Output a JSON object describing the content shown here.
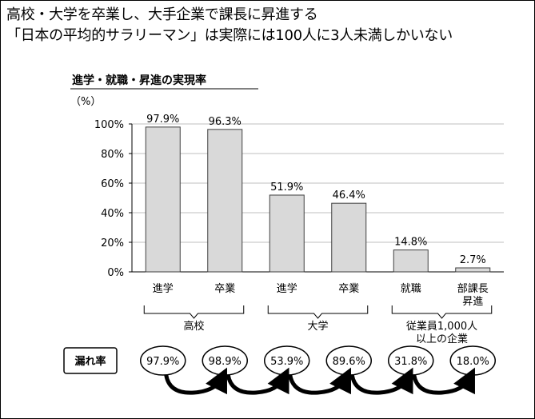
{
  "headline": {
    "line1": "高校・大学を卒業し、大手企業で課長に昇進する",
    "line2": "「日本の平均的サラリーマン」は実際には100人に3人未満しかいない"
  },
  "chart_data": {
    "type": "bar",
    "title": "進学・就職・昇進の実現率",
    "ylabel": "（%）",
    "ylim": [
      0,
      100
    ],
    "yticks": [
      "0%",
      "20%",
      "40%",
      "60%",
      "80%",
      "100%"
    ],
    "yticks_values": [
      0,
      20,
      40,
      60,
      80,
      100
    ],
    "grid": true,
    "categories": [
      "進学",
      "卒業",
      "進学",
      "卒業",
      "就職",
      "部課長\n昇進"
    ],
    "values": [
      97.9,
      96.3,
      51.9,
      46.4,
      14.8,
      2.7
    ],
    "value_labels": [
      "97.9%",
      "96.3%",
      "51.9%",
      "46.4%",
      "14.8%",
      "2.7%"
    ],
    "groups": [
      {
        "label": "高校",
        "span": [
          0,
          1
        ]
      },
      {
        "label": "大学",
        "span": [
          2,
          3
        ]
      },
      {
        "label": "従業員1,000人\n以上の企業",
        "span": [
          4,
          5
        ]
      }
    ],
    "leak_rate": {
      "label": "漏れ率",
      "values": [
        97.9,
        98.9,
        53.9,
        89.6,
        31.8,
        18.0
      ],
      "value_labels": [
        "97.9%",
        "98.9%",
        "53.9%",
        "89.6%",
        "31.8%",
        "18.0%"
      ]
    },
    "colors": {
      "bar_fill": "#d9d9d9",
      "bar_stroke": "#404040",
      "grid": "#bfbfbf"
    }
  }
}
